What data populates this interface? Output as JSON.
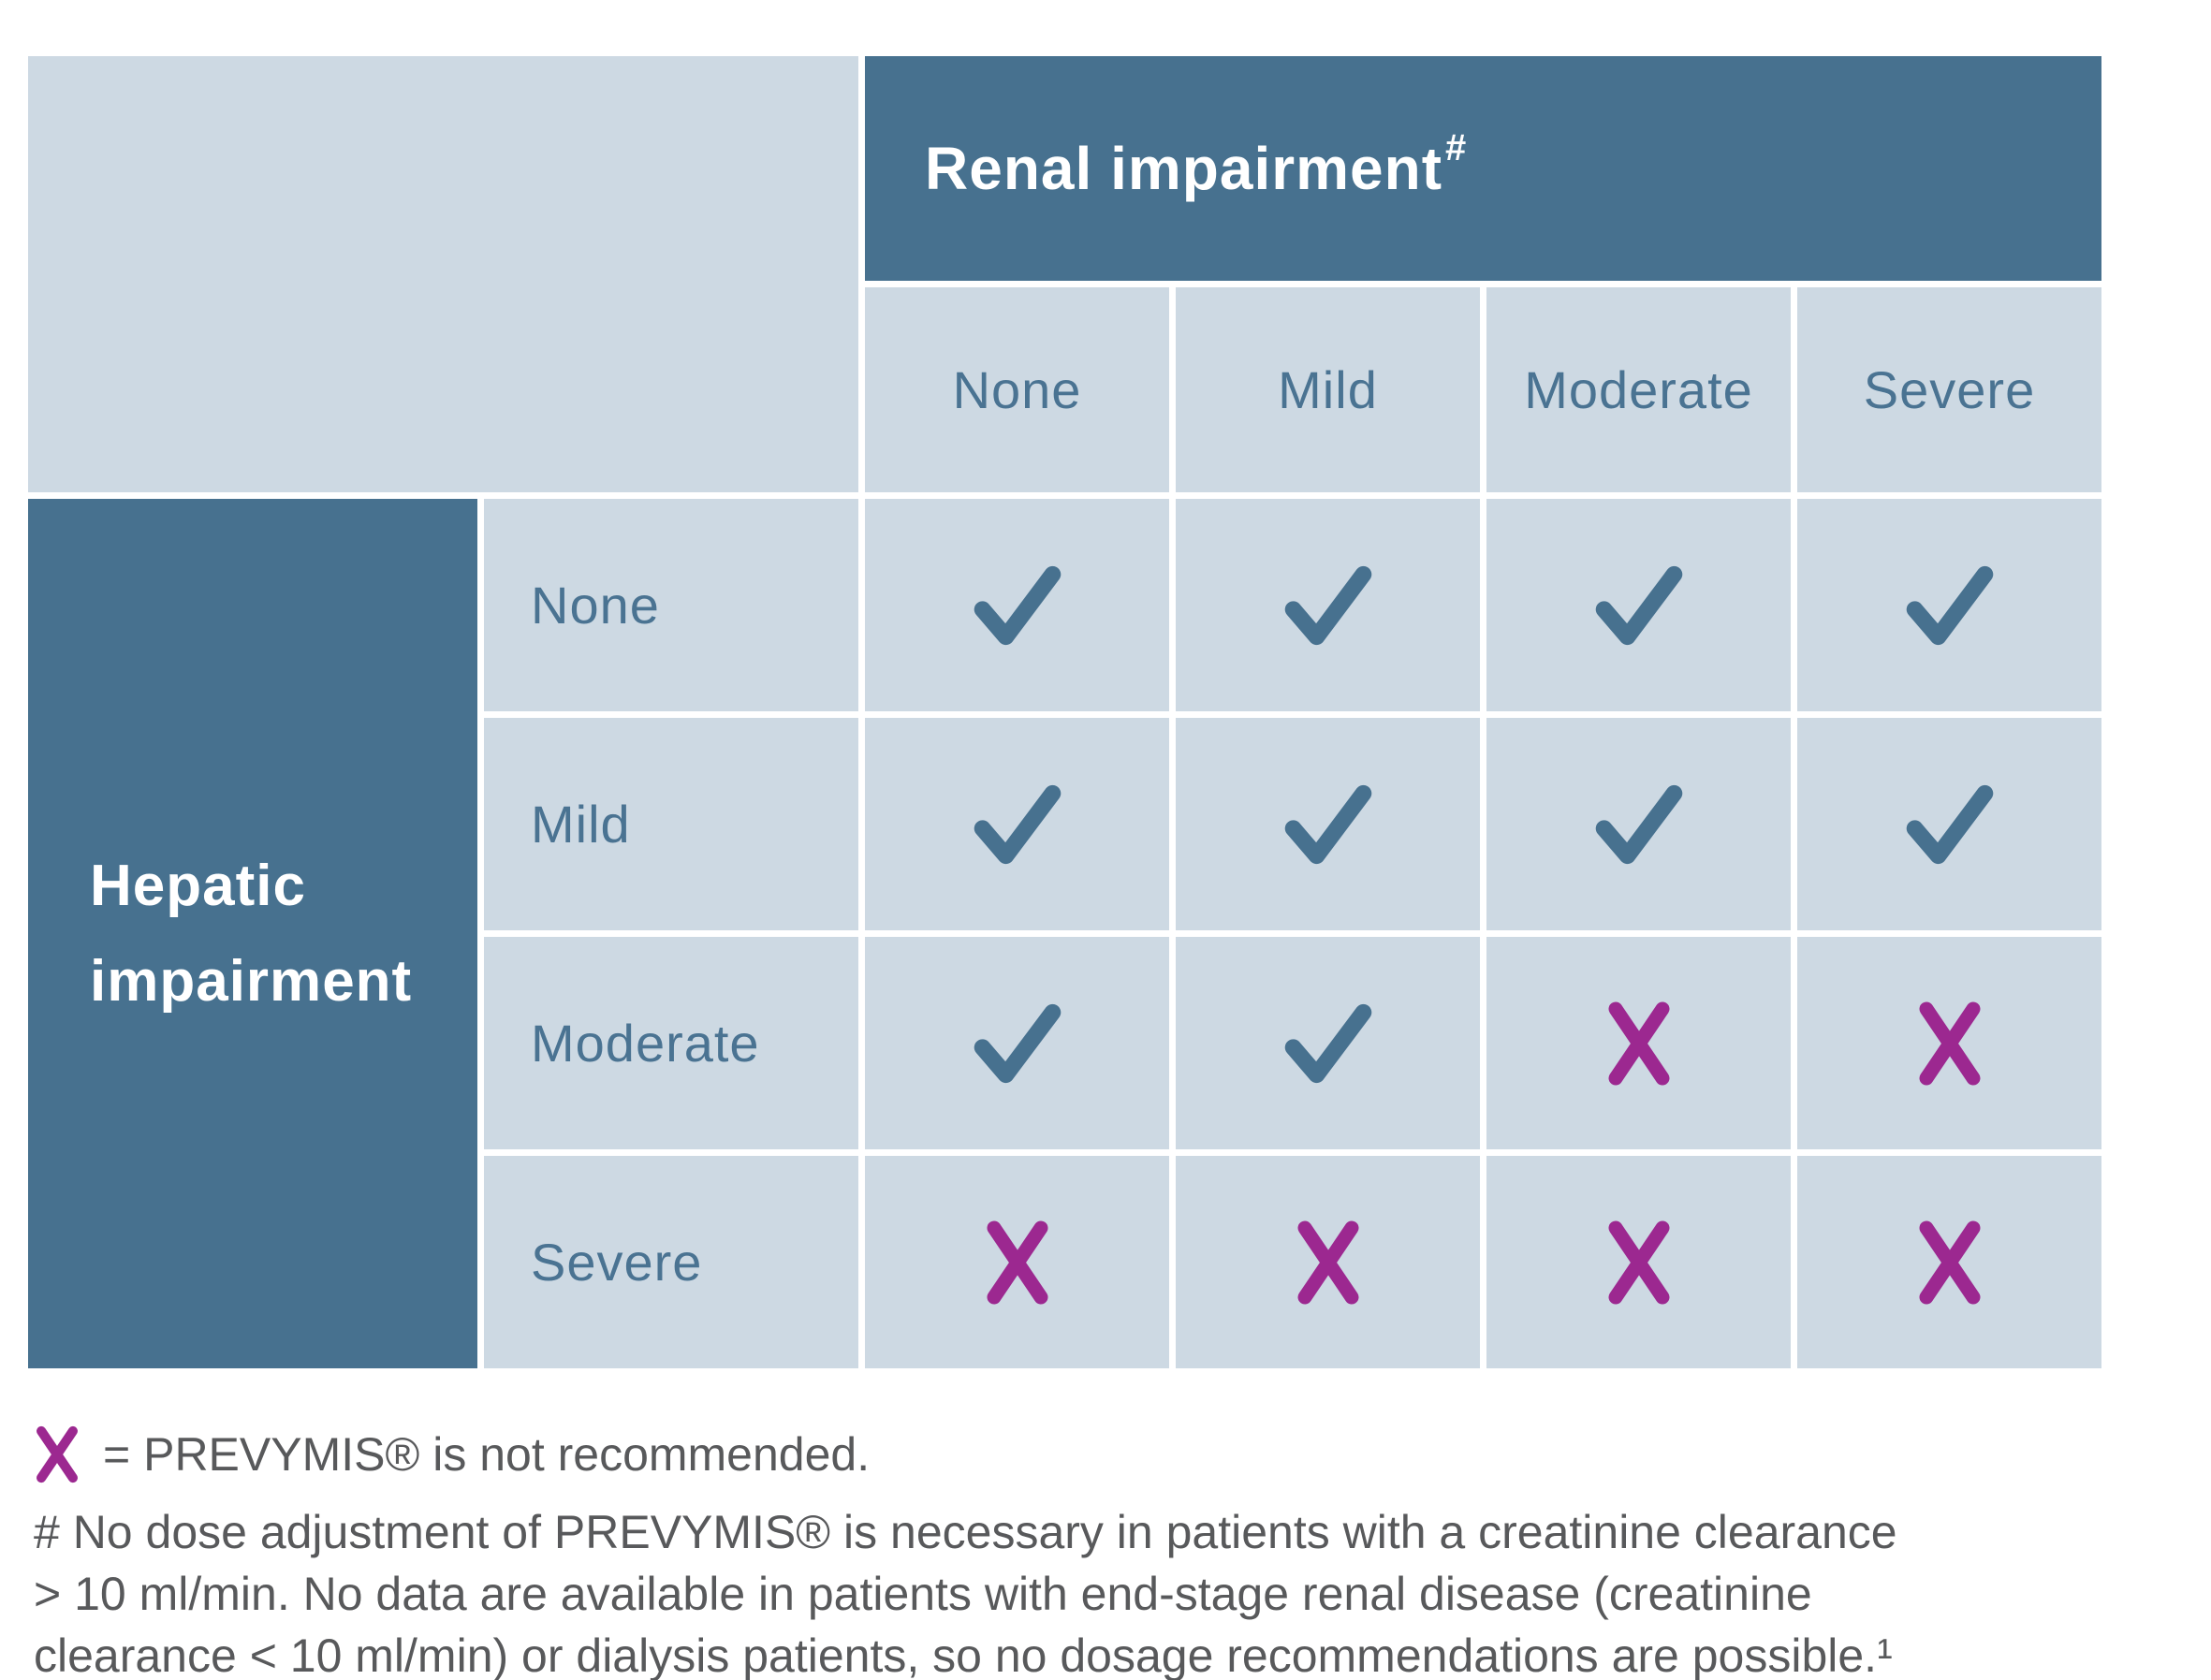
{
  "colors": {
    "dark_blue": "#47718F",
    "light_blue": "#CDD9E3",
    "label_blue": "#4A7392",
    "check_blue": "#47718F",
    "cross_purple": "#9C2890",
    "footnote_gray": "#58595B"
  },
  "table": {
    "renal_header": "Renal impairment",
    "renal_header_marker": "#",
    "hepatic_header_lines": [
      "Hepatic",
      "impairment"
    ],
    "columns": [
      "None",
      "Mild",
      "Moderate",
      "Severe"
    ],
    "rows": [
      {
        "label": "None",
        "cells": [
          "check",
          "check",
          "check",
          "check"
        ]
      },
      {
        "label": "Mild",
        "cells": [
          "check",
          "check",
          "check",
          "check"
        ]
      },
      {
        "label": "Moderate",
        "cells": [
          "check",
          "check",
          "cross",
          "cross"
        ]
      },
      {
        "label": "Severe",
        "cells": [
          "cross",
          "cross",
          "cross",
          "cross"
        ]
      }
    ]
  },
  "legend": {
    "symbol": "cross-icon",
    "text": "= PREVYMIS® is not recommended."
  },
  "footnote": {
    "lines": [
      "# No dose adjustment of PREVYMIS® is necessary in patients with a creatinine clearance",
      "> 10 ml/min. No data are available in patients with end-stage renal disease (creatinine",
      "clearance < 10 ml/min) or dialysis patients, so no dosage recommendations are possible.¹"
    ]
  }
}
